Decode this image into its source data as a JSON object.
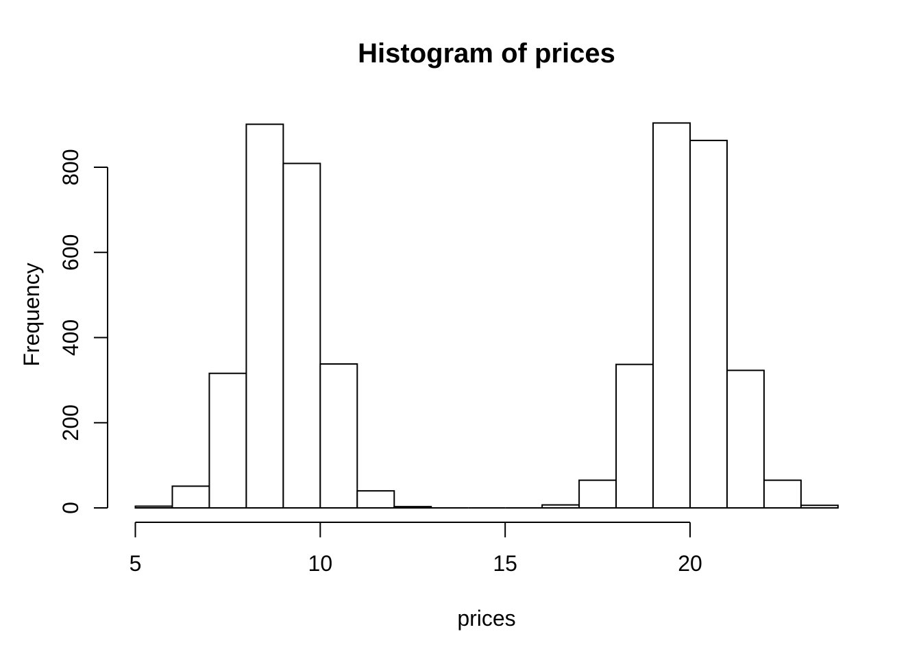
{
  "figure": {
    "background_color": "#ffffff",
    "foreground_color": "#000000"
  },
  "chart_data": {
    "type": "bar",
    "subtype": "histogram",
    "title": "Histogram of prices",
    "xlabel": "prices",
    "ylabel": "Frequency",
    "bin_breaks": [
      5,
      6,
      7,
      8,
      9,
      10,
      11,
      12,
      13,
      14,
      15,
      16,
      17,
      18,
      19,
      20,
      21,
      22,
      23,
      24
    ],
    "counts": [
      4,
      51,
      316,
      901,
      809,
      338,
      40,
      3,
      0,
      0,
      0,
      7,
      65,
      337,
      904,
      863,
      323,
      65,
      6
    ],
    "xticks": [
      5,
      10,
      15,
      20
    ],
    "yticks": [
      0,
      200,
      400,
      600,
      800
    ],
    "xlim": [
      5,
      24
    ],
    "ylim": [
      0,
      905
    ],
    "grid": false,
    "legend": "none",
    "bar_fill": "#ffffff",
    "bar_stroke": "#000000"
  }
}
